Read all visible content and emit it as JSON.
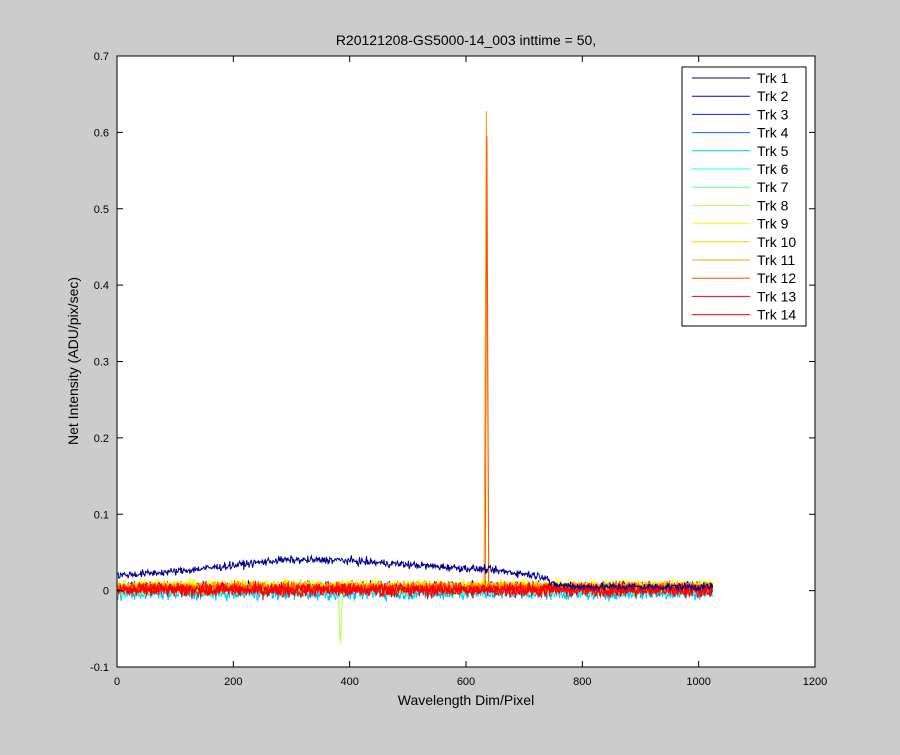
{
  "figure": {
    "background": "#cccccc",
    "axes_background": "#ffffff"
  },
  "chart_data": {
    "type": "line",
    "title": "R20121208-GS5000-14_003 inttime = 50,",
    "xlabel": "Wavelength Dim/Pixel",
    "ylabel": "Net Intensity (ADU/pix/sec)",
    "xlim": [
      0,
      1200
    ],
    "ylim": [
      -0.1,
      0.7
    ],
    "xticks": [
      0,
      200,
      400,
      600,
      800,
      1000,
      1200
    ],
    "yticks": [
      -0.1,
      0,
      0.1,
      0.2,
      0.3,
      0.4,
      0.5,
      0.6,
      0.7
    ],
    "xtick_labels": [
      "0",
      "200",
      "400",
      "600",
      "800",
      "1000",
      "1200"
    ],
    "ytick_labels": [
      "-0.1",
      "0",
      "0.1",
      "0.2",
      "0.3",
      "0.4",
      "0.5",
      "0.6",
      "0.7"
    ],
    "grid": false,
    "legend_position": "top-right",
    "x_range_of_data": [
      1,
      1024
    ],
    "series": [
      {
        "name": "Trk 1",
        "color": "#00008f",
        "baseline": [
          [
            1,
            0.02
          ],
          [
            100,
            0.025
          ],
          [
            200,
            0.033
          ],
          [
            280,
            0.04
          ],
          [
            380,
            0.04
          ],
          [
            460,
            0.036
          ],
          [
            540,
            0.032
          ],
          [
            630,
            0.028
          ],
          [
            700,
            0.022
          ],
          [
            740,
            0.018
          ],
          [
            745,
            0.008
          ],
          [
            800,
            0.005
          ],
          [
            1024,
            0.005
          ]
        ],
        "noise": 0.005,
        "peaks": []
      },
      {
        "name": "Trk 2",
        "color": "#0000df",
        "baseline": [
          [
            1,
            0.006
          ],
          [
            1024,
            0.006
          ]
        ],
        "noise": 0.006,
        "peaks": []
      },
      {
        "name": "Trk 3",
        "color": "#0020ff",
        "baseline": [
          [
            1,
            0.005
          ],
          [
            1024,
            0.005
          ]
        ],
        "noise": 0.006,
        "peaks": []
      },
      {
        "name": "Trk 4",
        "color": "#0070ff",
        "baseline": [
          [
            1,
            0.004
          ],
          [
            1024,
            0.004
          ]
        ],
        "noise": 0.006,
        "peaks": []
      },
      {
        "name": "Trk 5",
        "color": "#00c0ff",
        "baseline": [
          [
            1,
            -0.004
          ],
          [
            1024,
            -0.004
          ]
        ],
        "noise": 0.008,
        "peaks": []
      },
      {
        "name": "Trk 6",
        "color": "#10ffef",
        "baseline": [
          [
            1,
            0.0
          ],
          [
            1024,
            0.0
          ]
        ],
        "noise": 0.007,
        "peaks": []
      },
      {
        "name": "Trk 7",
        "color": "#60ff9f",
        "baseline": [
          [
            1,
            0.002
          ],
          [
            1024,
            0.002
          ]
        ],
        "noise": 0.007,
        "peaks": []
      },
      {
        "name": "Trk 8",
        "color": "#b0ff4f",
        "baseline": [
          [
            1,
            0.003
          ],
          [
            1024,
            0.003
          ]
        ],
        "noise": 0.007,
        "peaks": [
          [
            384,
            -0.07,
            3
          ]
        ]
      },
      {
        "name": "Trk 9",
        "color": "#ffff00",
        "baseline": [
          [
            1,
            0.008
          ],
          [
            1024,
            0.008
          ]
        ],
        "noise": 0.007,
        "peaks": []
      },
      {
        "name": "Trk 10",
        "color": "#ffd000",
        "baseline": [
          [
            1,
            0.006
          ],
          [
            1024,
            0.006
          ]
        ],
        "noise": 0.006,
        "peaks": []
      },
      {
        "name": "Trk 11",
        "color": "#ff9f00",
        "baseline": [
          [
            1,
            0.005
          ],
          [
            1024,
            0.005
          ]
        ],
        "noise": 0.006,
        "peaks": [
          [
            635,
            0.628,
            3
          ]
        ]
      },
      {
        "name": "Trk 12",
        "color": "#ff5000",
        "baseline": [
          [
            1,
            0.004
          ],
          [
            1024,
            0.004
          ]
        ],
        "noise": 0.007,
        "peaks": [
          [
            636,
            0.595,
            2
          ]
        ]
      },
      {
        "name": "Trk 13",
        "color": "#ff0000",
        "baseline": [
          [
            1,
            0.002
          ],
          [
            1024,
            0.002
          ]
        ],
        "noise": 0.008,
        "peaks": []
      },
      {
        "name": "Trk 14",
        "color": "#ff0000",
        "baseline": [
          [
            1,
            0.0
          ],
          [
            1024,
            0.0
          ]
        ],
        "noise": 0.009,
        "peaks": []
      }
    ]
  }
}
